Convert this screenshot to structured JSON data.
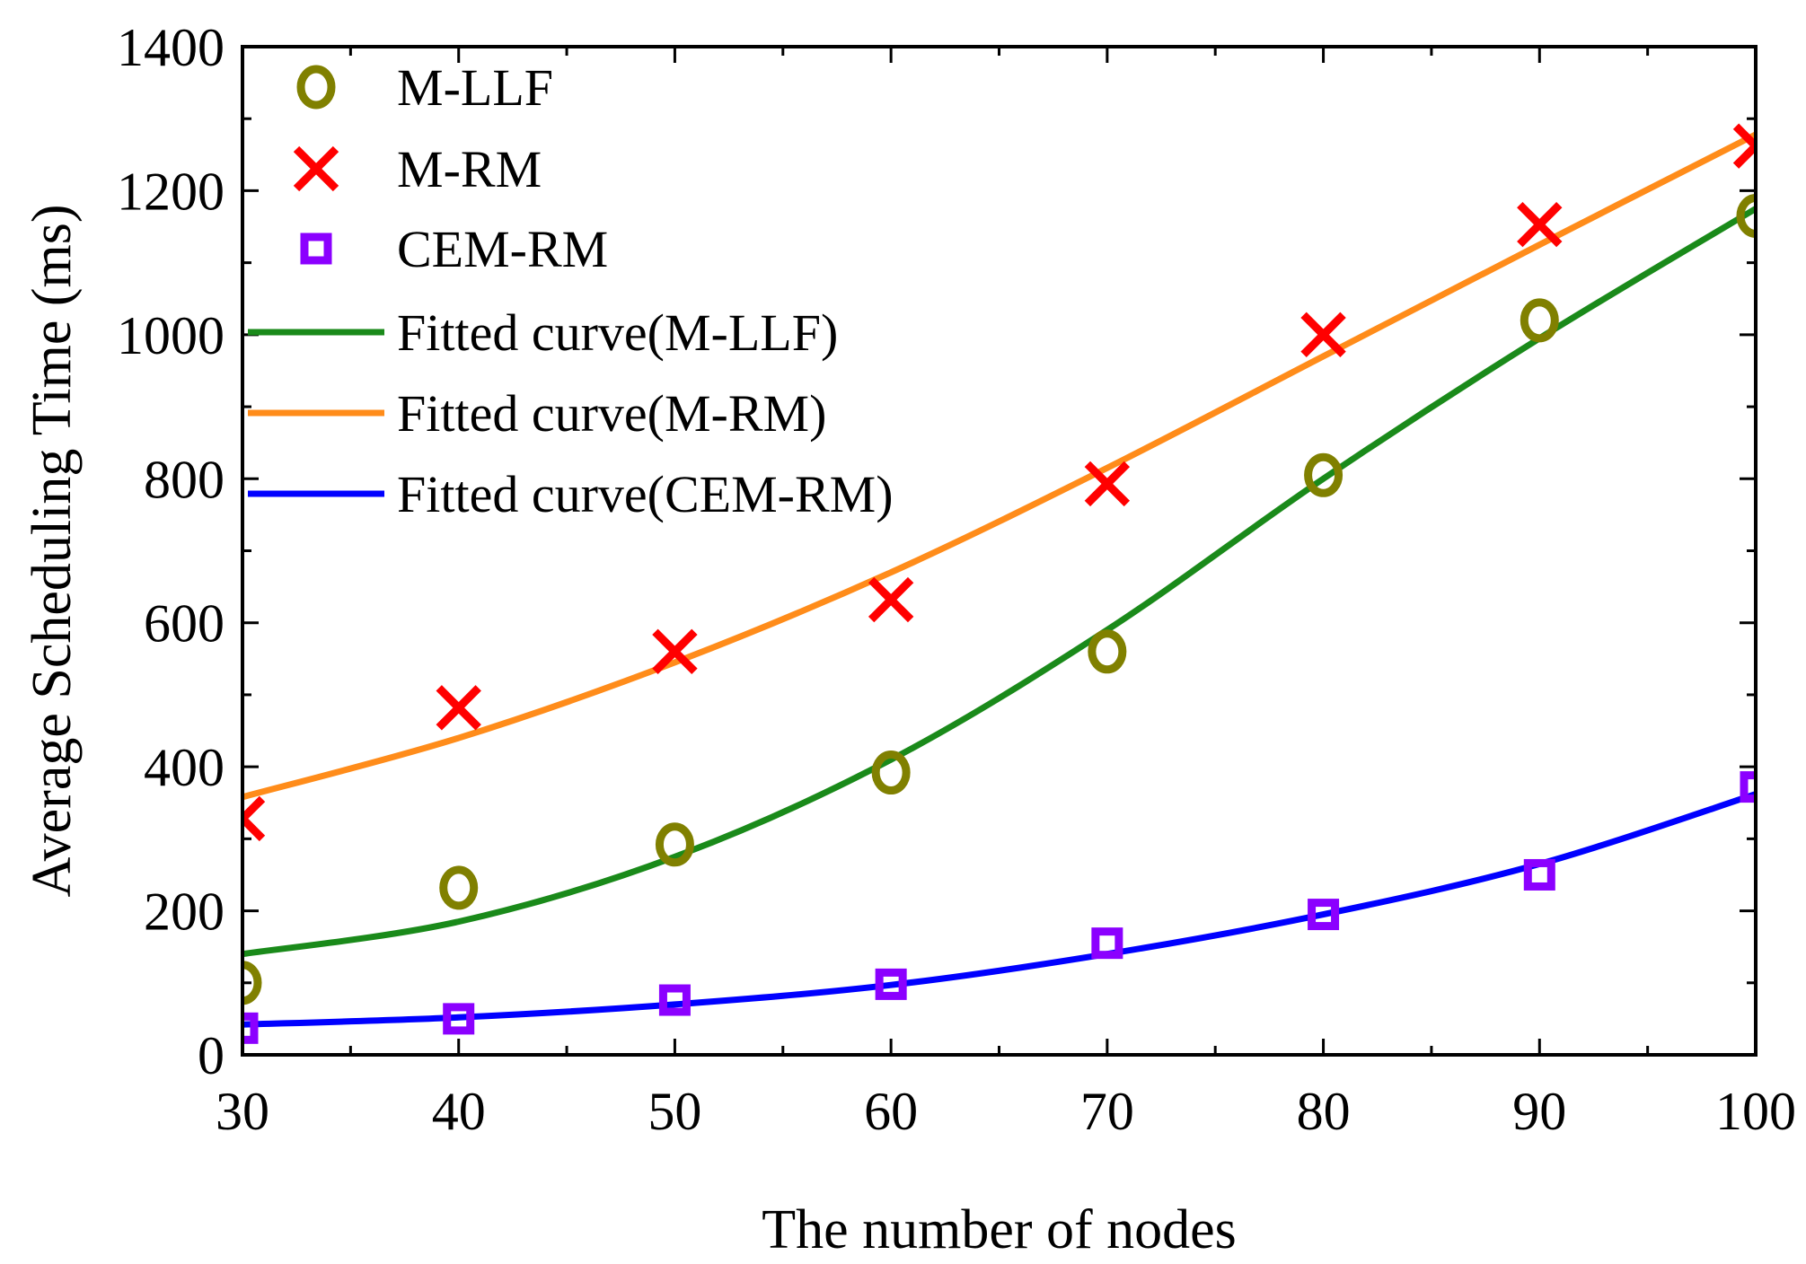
{
  "chart_data": {
    "type": "scatter",
    "xlabel": "The number of nodes",
    "ylabel": "Average Scheduling Time (ms)",
    "xlim": [
      30,
      100
    ],
    "ylim": [
      0,
      1400
    ],
    "xticks": [
      30,
      40,
      50,
      60,
      70,
      80,
      90,
      100
    ],
    "yticks": [
      0,
      200,
      400,
      600,
      800,
      1000,
      1200,
      1400
    ],
    "grid": false,
    "legend_position": "top-left",
    "x": [
      30,
      40,
      50,
      60,
      70,
      80,
      90,
      100
    ],
    "series": [
      {
        "name": "M-LLF",
        "marker": "circle",
        "color": "#808000",
        "values": [
          100,
          232,
          292,
          392,
          560,
          805,
          1020,
          1165
        ]
      },
      {
        "name": "M-RM",
        "marker": "x",
        "color": "#ff0000",
        "values": [
          328,
          482,
          560,
          632,
          793,
          1000,
          1153,
          1262
        ]
      },
      {
        "name": "CEM-RM",
        "marker": "square",
        "color": "#8b00ff",
        "values": [
          37,
          50,
          76,
          98,
          155,
          195,
          250,
          372
        ]
      }
    ],
    "fitted_curves": [
      {
        "name": "Fitted curve(M-LLF)",
        "color": "#1a8a1a",
        "x": [
          30,
          40,
          50,
          60,
          70,
          80,
          90,
          100
        ],
        "values": [
          140,
          185,
          275,
          410,
          590,
          800,
          995,
          1175
        ]
      },
      {
        "name": "Fitted curve(M-RM)",
        "color": "#ff8c1a",
        "x": [
          30,
          40,
          50,
          60,
          70,
          80,
          90,
          100
        ],
        "values": [
          358,
          440,
          545,
          670,
          815,
          970,
          1125,
          1278
        ]
      },
      {
        "name": "Fitted curve(CEM-RM)",
        "color": "#0000ff",
        "x": [
          30,
          40,
          50,
          60,
          70,
          80,
          90,
          100
        ],
        "values": [
          42,
          52,
          70,
          97,
          140,
          195,
          265,
          362
        ]
      }
    ]
  }
}
